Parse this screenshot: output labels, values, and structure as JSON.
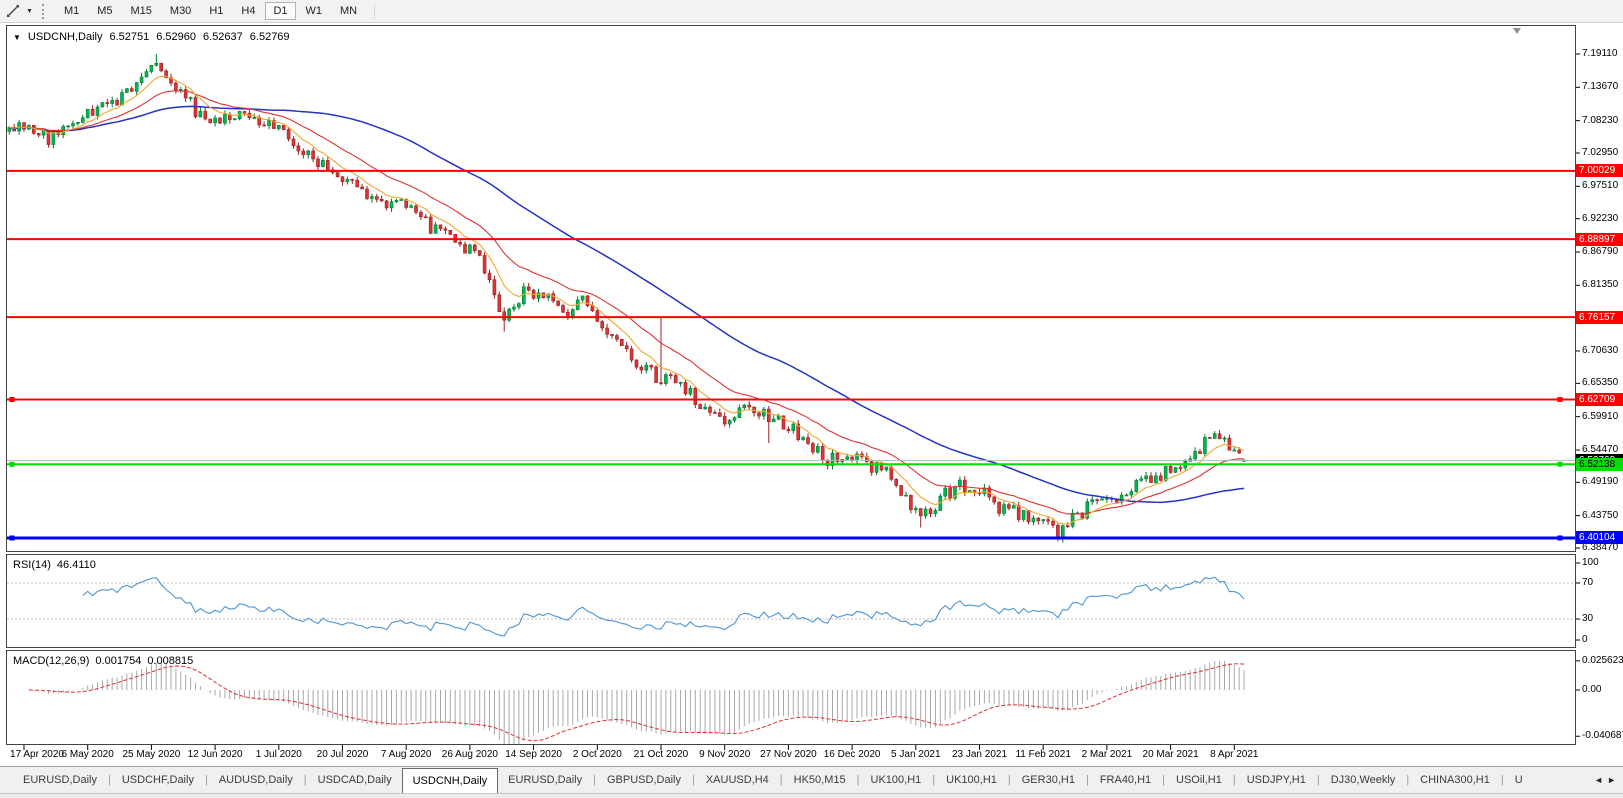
{
  "toolbar": {
    "timeframes": [
      "M1",
      "M5",
      "M15",
      "M30",
      "H1",
      "H4",
      "D1",
      "W1",
      "MN"
    ],
    "active_timeframe": "D1"
  },
  "icons": {
    "caret_down": "▼",
    "scroll_left": "◄",
    "scroll_right": "►"
  },
  "chart": {
    "symbol": "USDCNH,Daily",
    "open": "6.52751",
    "high": "6.52960",
    "low": "6.52637",
    "close": "6.52769",
    "price_ticks": [
      "7.19110",
      "7.13670",
      "7.08230",
      "7.02950",
      "6.97510",
      "6.92230",
      "6.86790",
      "6.81350",
      "6.70630",
      "6.65350",
      "6.59910",
      "6.54470",
      "6.49190",
      "6.43750",
      "6.38470"
    ],
    "level_lines": [
      {
        "label": "7.00029",
        "price": 7.00029,
        "color": "#ff0000",
        "text_color": "#ffffff",
        "width": 2,
        "handles": false
      },
      {
        "label": "6.88897",
        "price": 6.88897,
        "color": "#ff0000",
        "text_color": "#ffffff",
        "width": 2,
        "handles": false
      },
      {
        "label": "6.76157",
        "price": 6.76157,
        "color": "#ff0000",
        "text_color": "#ffffff",
        "width": 2,
        "handles": false
      },
      {
        "label": "6.62709",
        "price": 6.62709,
        "color": "#ff0000",
        "text_color": "#ffffff",
        "width": 2,
        "handles": true
      },
      {
        "label": "6.52138",
        "price": 6.52138,
        "color": "#00dd00",
        "text_color": "#000000",
        "width": 2,
        "handles": true
      },
      {
        "label": "6.40104",
        "price": 6.40104,
        "color": "#0000ff",
        "text_color": "#ffffff",
        "width": 3,
        "handles": true
      }
    ],
    "current_price": {
      "label": "6.52769",
      "price": 6.52769,
      "tag_bg": "#000000",
      "tag_text": "#ffffff",
      "line_color": "#b8b8b8"
    },
    "date_labels": [
      "17 Apr 2020",
      "6 May 2020",
      "25 May 2020",
      "12 Jun 2020",
      "1 Jul 2020",
      "20 Jul 2020",
      "7 Aug 2020",
      "26 Aug 2020",
      "14 Sep 2020",
      "2 Oct 2020",
      "21 Oct 2020",
      "9 Nov 2020",
      "27 Nov 2020",
      "16 Dec 2020",
      "5 Jan 2021",
      "23 Jan 2021",
      "11 Feb 2021",
      "2 Mar 2021",
      "20 Mar 2021",
      "8 Apr 2021"
    ],
    "colors": {
      "bull": "#00b94e",
      "bull_edge": "#007a30",
      "bear": "#dd3333",
      "bear_edge": "#992222",
      "ma_fast": "#f2a72e",
      "ma_mid": "#dd3333",
      "ma_slow": "#2433c4",
      "rsi_line": "#4f94d4",
      "macd_hist": "#a8a8a8",
      "macd_signal": "#e03030"
    }
  },
  "rsi": {
    "name": "RSI(14)",
    "value": "46.4110",
    "scale": [
      "100",
      "70",
      "30",
      "0"
    ]
  },
  "macd": {
    "name": "MACD(12,26,9)",
    "value1": "0.001754",
    "value2": "0.008815",
    "scale": [
      "0.025623",
      "0.00",
      "-0.040687"
    ]
  },
  "tabs": {
    "active_index": 4,
    "items": [
      "EURUSD,Daily",
      "USDCHF,Daily",
      "AUDUSD,Daily",
      "USDCAD,Daily",
      "USDCNH,Daily",
      "EURUSD,Daily",
      "GBPUSD,Daily",
      "XAUUSD,H4",
      "HK50,M15",
      "UK100,H1",
      "UK100,H1",
      "GER30,H1",
      "FRA40,H1",
      "USOil,H1",
      "USDJPY,H1",
      "DJ30,Weekly",
      "CHINA300,H1",
      "U"
    ]
  },
  "chart_data": {
    "type": "candlestick",
    "symbol": "USDCNH",
    "timeframe": "Daily",
    "x_axis_dates": [
      "17 Apr 2020",
      "6 May 2020",
      "25 May 2020",
      "12 Jun 2020",
      "1 Jul 2020",
      "20 Jul 2020",
      "7 Aug 2020",
      "26 Aug 2020",
      "14 Sep 2020",
      "2 Oct 2020",
      "21 Oct 2020",
      "9 Nov 2020",
      "27 Nov 2020",
      "16 Dec 2020",
      "5 Jan 2021",
      "23 Jan 2021",
      "11 Feb 2021",
      "2 Mar 2021",
      "20 Mar 2021",
      "8 Apr 2021"
    ],
    "price_axis_range": [
      6.3847,
      7.1911
    ],
    "bars_per_label": 13,
    "close_path_anchors": [
      [
        0,
        7.06
      ],
      [
        4,
        7.075
      ],
      [
        8,
        7.05
      ],
      [
        12,
        7.07
      ],
      [
        17,
        7.095
      ],
      [
        22,
        7.11
      ],
      [
        26,
        7.15
      ],
      [
        29,
        7.18
      ],
      [
        31,
        7.17
      ],
      [
        34,
        7.135
      ],
      [
        38,
        7.1
      ],
      [
        42,
        7.075
      ],
      [
        46,
        7.09
      ],
      [
        50,
        7.08
      ],
      [
        55,
        7.065
      ],
      [
        59,
        7.04
      ],
      [
        63,
        7.015
      ],
      [
        67,
        6.995
      ],
      [
        71,
        6.975
      ],
      [
        75,
        6.955
      ],
      [
        80,
        6.945
      ],
      [
        84,
        6.92
      ],
      [
        88,
        6.9
      ],
      [
        93,
        6.875
      ],
      [
        97,
        6.845
      ],
      [
        101,
        6.76
      ],
      [
        105,
        6.8
      ],
      [
        109,
        6.795
      ],
      [
        113,
        6.77
      ],
      [
        117,
        6.785
      ],
      [
        121,
        6.75
      ],
      [
        125,
        6.705
      ],
      [
        129,
        6.68
      ],
      [
        133,
        6.66
      ],
      [
        136,
        6.665
      ],
      [
        140,
        6.625
      ],
      [
        144,
        6.6
      ],
      [
        147,
        6.59
      ],
      [
        151,
        6.615
      ],
      [
        155,
        6.598
      ],
      [
        159,
        6.585
      ],
      [
        163,
        6.555
      ],
      [
        167,
        6.53
      ],
      [
        171,
        6.535
      ],
      [
        175,
        6.52
      ],
      [
        179,
        6.505
      ],
      [
        183,
        6.465
      ],
      [
        186,
        6.432
      ],
      [
        190,
        6.465
      ],
      [
        194,
        6.488
      ],
      [
        198,
        6.478
      ],
      [
        202,
        6.452
      ],
      [
        206,
        6.44
      ],
      [
        210,
        6.425
      ],
      [
        214,
        6.41
      ],
      [
        218,
        6.438
      ],
      [
        222,
        6.462
      ],
      [
        226,
        6.455
      ],
      [
        230,
        6.488
      ],
      [
        234,
        6.498
      ],
      [
        238,
        6.515
      ],
      [
        242,
        6.545
      ],
      [
        246,
        6.565
      ],
      [
        249,
        6.552
      ],
      [
        252,
        6.528
      ]
    ],
    "wick_extremes": [
      {
        "bar": 30,
        "high": 7.1911
      },
      {
        "bar": 101,
        "low": 6.738
      },
      {
        "bar": 133,
        "high": 6.761
      },
      {
        "bar": 155,
        "low": 6.556
      },
      {
        "bar": 186,
        "low": 6.418
      },
      {
        "bar": 214,
        "low": 6.4015
      }
    ],
    "last_ohlc": {
      "open": 6.52751,
      "high": 6.5296,
      "low": 6.52637,
      "close": 6.52769
    },
    "horizontal_levels": [
      7.00029,
      6.88897,
      6.76157,
      6.62709,
      6.52138,
      6.40104
    ],
    "indicators": [
      {
        "name": "RSI",
        "period": 14,
        "last_value": 46.411,
        "levels": [
          70,
          30
        ]
      },
      {
        "name": "MACD",
        "params": [
          12,
          26,
          9
        ],
        "last_main": 0.001754,
        "last_signal": 0.008815,
        "scale_max": 0.025623,
        "scale_min": -0.040687
      }
    ],
    "moving_averages": [
      {
        "type": "fast",
        "color": "#f2a72e"
      },
      {
        "type": "medium",
        "color": "#dd3333"
      },
      {
        "type": "slow",
        "color": "#2433c4"
      }
    ]
  }
}
